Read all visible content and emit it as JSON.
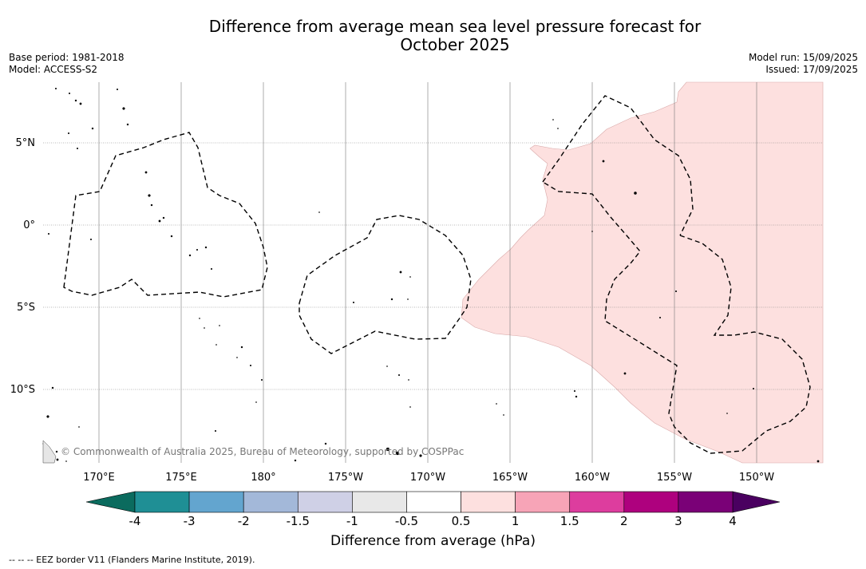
{
  "title_line1": "Difference from average mean sea level pressure forecast for",
  "title_line2": "October 2025",
  "base_period": "Base period: 1981-2018",
  "model": "Model: ACCESS-S2",
  "model_run": "Model run: 15/09/2025",
  "issued": "Issued: 17/09/2025",
  "copyright": "© Commonwealth of Australia 2025, Bureau of Meteorology, supported by COSPPac",
  "colorbar_title": "Difference from average (hPa)",
  "footnote": "--  --  -- EEZ border V11 (Flanders Marine Institute, 2019).",
  "lat_labels": [
    "5°N",
    "0°",
    "5°S",
    "10°S"
  ],
  "lon_labels": [
    "170°E",
    "175°E",
    "180°",
    "175°W",
    "170°W",
    "165°W",
    "160°W",
    "155°W",
    "150°W"
  ],
  "colorbar": {
    "ticks": [
      "-4",
      "-3",
      "-2",
      "-1.5",
      "-1",
      "-0.5",
      "0.5",
      "1",
      "1.5",
      "2",
      "3",
      "4"
    ],
    "low_extend_color": "#0b6b5e",
    "high_extend_color": "#4a0060",
    "bin_colors": [
      "#1f8f95",
      "#63a5cf",
      "#a3b8d9",
      "#cfd0e6",
      "#e8e8e8",
      "#ffffff",
      "#fde0df",
      "#f7a4b7",
      "#dd3d9e",
      "#ae017e",
      "#7a0177"
    ]
  },
  "map": {
    "positive_anomaly_color": "#fde0df",
    "positive_anomaly_range": "0.5 to 1 hPa"
  }
}
